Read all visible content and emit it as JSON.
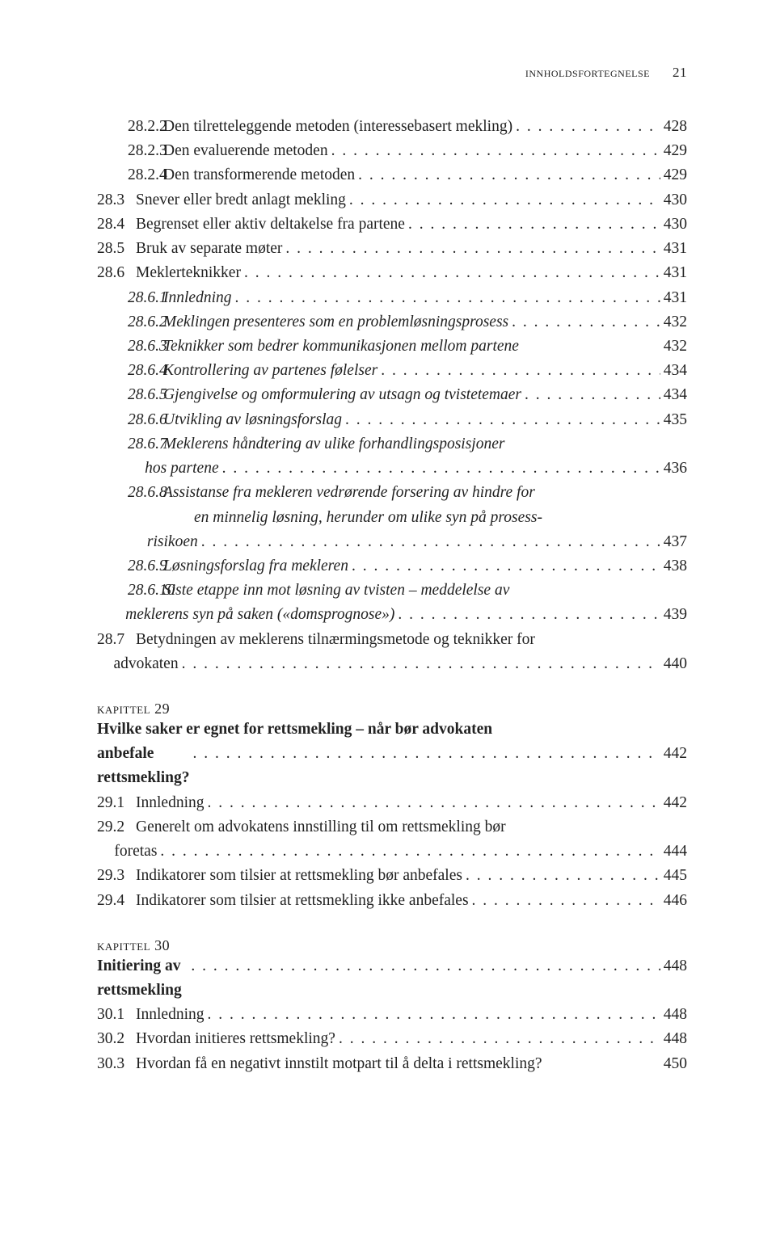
{
  "header": {
    "title": "innholdsfortegnelse",
    "page": "21"
  },
  "toc": [
    {
      "type": "row",
      "indent": 1,
      "num": "28.2.2",
      "label": "Den tilretteleggende metoden (interessebasert mekling)",
      "page": "428"
    },
    {
      "type": "row",
      "indent": 1,
      "num": "28.2.3",
      "label": "Den evaluerende metoden",
      "page": "429"
    },
    {
      "type": "row",
      "indent": 1,
      "num": "28.2.4",
      "label": "Den transformerende metoden",
      "page": "429"
    },
    {
      "type": "row",
      "indent": 0,
      "num": "28.3",
      "label": "Snever eller bredt anlagt mekling",
      "page": "430"
    },
    {
      "type": "row",
      "indent": 0,
      "num": "28.4",
      "label": "Begrenset eller aktiv deltakelse fra partene",
      "page": "430"
    },
    {
      "type": "row",
      "indent": 0,
      "num": "28.5",
      "label": "Bruk av separate møter",
      "page": "431"
    },
    {
      "type": "row",
      "indent": 0,
      "num": "28.6",
      "label": "Meklerteknikker",
      "page": "431"
    },
    {
      "type": "row",
      "italic": true,
      "indent": 1,
      "num": "28.6.1",
      "label": "Innledning",
      "page": "431"
    },
    {
      "type": "row",
      "italic": true,
      "indent": 1,
      "num": "28.6.2",
      "label": "Meklingen presenteres som en problemløsningsprosess",
      "page": "432"
    },
    {
      "type": "row",
      "italic": true,
      "indent": 1,
      "num": "28.6.3",
      "label": "Teknikker som bedrer kommunikasjonen mellom partene",
      "nodots": true,
      "page": "432"
    },
    {
      "type": "row",
      "italic": true,
      "indent": 1,
      "num": "28.6.4",
      "label": "Kontrollering av partenes følelser",
      "page": "434"
    },
    {
      "type": "row",
      "italic": true,
      "indent": 1,
      "num": "28.6.5",
      "label": "Gjengivelse og omformulering av utsagn og tvistetemaer",
      "page": "434"
    },
    {
      "type": "row",
      "italic": true,
      "indent": 1,
      "num": "28.6.6",
      "label": "Utvikling av løsningsforslag",
      "page": "435"
    },
    {
      "type": "wrap",
      "italic": true,
      "indent": 1,
      "num": "28.6.7",
      "line1": "Meklerens håndtering av ulike forhandlingsposisjoner",
      "line2": "hos partene",
      "page": "436"
    },
    {
      "type": "wrap3",
      "italic": true,
      "indent": 1,
      "num": "28.6.8",
      "line1": "Assistanse fra mekleren vedrørende forsering av hindre for",
      "line2": "en minnelig løsning, herunder om ulike syn på prosess-",
      "line3": "risikoen",
      "page": "437"
    },
    {
      "type": "row",
      "italic": true,
      "indent": 1,
      "num": "28.6.9",
      "label": "Løsningsforslag fra mekleren",
      "page": "438"
    },
    {
      "type": "wrap",
      "italic": true,
      "indent": 1,
      "num": "28.6.10",
      "line1": "Siste etappe inn mot løsning av tvisten – meddelelse av",
      "line2": "meklerens syn på saken («domsprognose»)",
      "page": "439"
    },
    {
      "type": "wrap",
      "indent": 0,
      "num": "28.7",
      "line1": "Betydningen av meklerens tilnærmingsmetode og teknikker for",
      "line2": "advokaten",
      "cont_indent": "38px",
      "page": "440"
    }
  ],
  "chapter29": {
    "kap": "kapittel 29",
    "title_l1": "Hvilke saker er egnet for rettsmekling – når bør advokaten",
    "title_l2": "anbefale rettsmekling?",
    "title_page": "442",
    "items": [
      {
        "type": "row",
        "indent": 0,
        "num": "29.1",
        "label": "Innledning",
        "page": "442"
      },
      {
        "type": "wrap",
        "indent": 0,
        "num": "29.2",
        "line1": "Generelt om advokatens innstilling til om rettsmekling bør",
        "line2": "foretas",
        "cont_indent": "38px",
        "page": "444"
      },
      {
        "type": "row",
        "indent": 0,
        "num": "29.3",
        "label": "Indikatorer som tilsier at rettsmekling bør anbefales",
        "page": "445"
      },
      {
        "type": "row",
        "indent": 0,
        "num": "29.4",
        "label": "Indikatorer som tilsier at rettsmekling ikke anbefales",
        "page": "446"
      }
    ]
  },
  "chapter30": {
    "kap": "kapittel 30",
    "title": "Initiering av rettsmekling",
    "title_page": "448",
    "items": [
      {
        "type": "row",
        "indent": 0,
        "num": "30.1",
        "label": "Innledning",
        "page": "448"
      },
      {
        "type": "row",
        "indent": 0,
        "num": "30.2",
        "label": "Hvordan initieres rettsmekling?",
        "page": "448"
      },
      {
        "type": "row",
        "indent": 0,
        "num": "30.3",
        "label": "Hvordan få en negativt innstilt motpart til å delta i rettsmekling?",
        "nodots": true,
        "page": "450"
      }
    ]
  },
  "style": {
    "num_width_l0": "44px",
    "num_width_l1": "78px"
  }
}
